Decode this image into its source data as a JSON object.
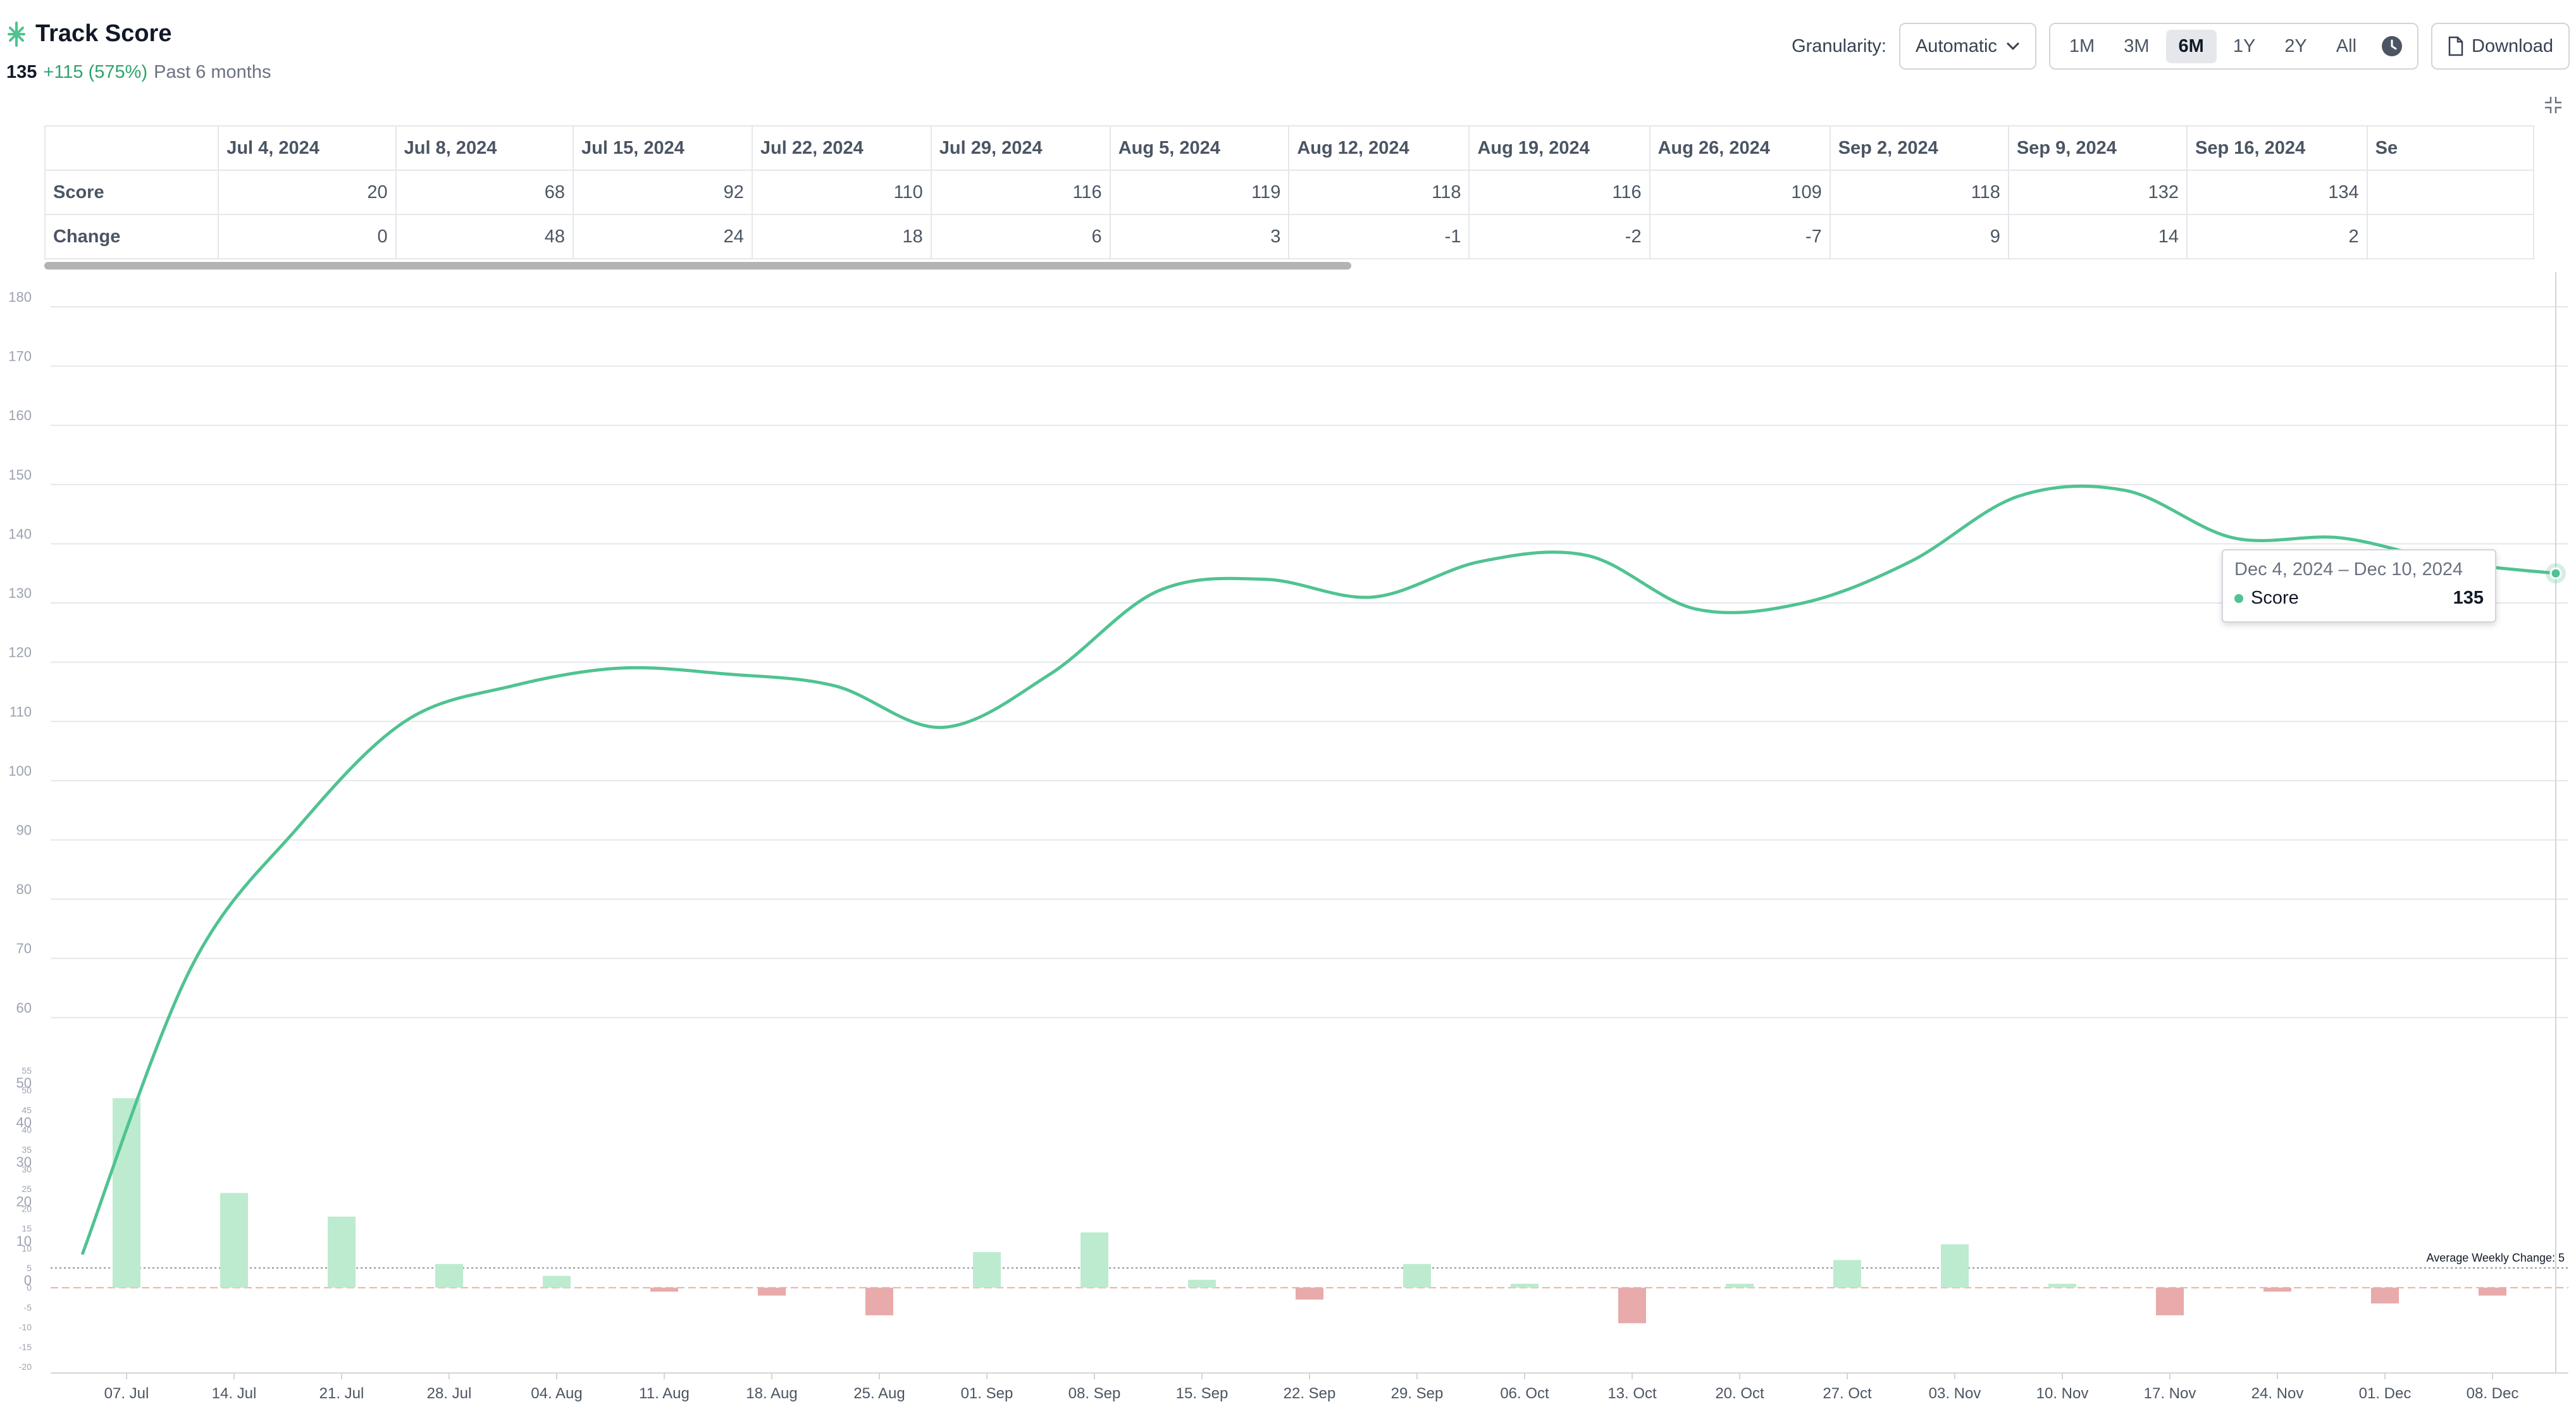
{
  "header": {
    "title": "Track Score",
    "current_value": "135",
    "change": "+115 (575%)",
    "period": "Past 6 months"
  },
  "controls": {
    "granularity_label": "Granularity:",
    "granularity_value": "Automatic",
    "ranges": [
      "1M",
      "3M",
      "6M",
      "1Y",
      "2Y",
      "All"
    ],
    "active_range": "6M",
    "download_label": "Download"
  },
  "table": {
    "columns": [
      "Jul 4, 2024",
      "Jul 8, 2024",
      "Jul 15, 2024",
      "Jul 22, 2024",
      "Jul 29, 2024",
      "Aug 5, 2024",
      "Aug 12, 2024",
      "Aug 19, 2024",
      "Aug 26, 2024",
      "Sep 2, 2024",
      "Sep 9, 2024",
      "Sep 16, 2024",
      "Se"
    ],
    "rows": [
      {
        "label": "Score",
        "values": [
          "20",
          "68",
          "92",
          "110",
          "116",
          "119",
          "118",
          "116",
          "109",
          "118",
          "132",
          "134",
          ""
        ]
      },
      {
        "label": "Change",
        "values": [
          "0",
          "48",
          "24",
          "18",
          "6",
          "3",
          "-1",
          "-2",
          "-7",
          "9",
          "14",
          "2",
          ""
        ]
      }
    ]
  },
  "tooltip": {
    "range": "Dec 4, 2024 – Dec 10, 2024",
    "series": "Score",
    "value": "135"
  },
  "colors": {
    "line": "#4fc391",
    "bar_positive": "#bdebcf",
    "bar_negative": "#e8aaaa",
    "grid": "#e5e7eb"
  },
  "chart_data": {
    "type": "line",
    "score_axis": {
      "ylim": [
        0,
        180
      ],
      "ticks": [
        60,
        70,
        80,
        90,
        100,
        110,
        120,
        130,
        140,
        150,
        160,
        170,
        180
      ]
    },
    "change_axis": {
      "ylim": [
        -20,
        55
      ],
      "ticks": [
        -20,
        -15,
        -10,
        -5,
        0,
        5,
        10,
        15,
        20,
        25,
        30,
        35,
        40,
        45,
        50,
        55
      ],
      "major_labels": [
        "0",
        "10",
        "20",
        "30",
        "40",
        "50"
      ]
    },
    "x_labels": [
      "07. Jul",
      "14. Jul",
      "21. Jul",
      "28. Jul",
      "04. Aug",
      "11. Aug",
      "18. Aug",
      "25. Aug",
      "01. Sep",
      "08. Sep",
      "15. Sep",
      "22. Sep",
      "29. Sep",
      "06. Oct",
      "13. Oct",
      "20. Oct",
      "27. Oct",
      "03. Nov",
      "10. Nov",
      "17. Nov",
      "24. Nov",
      "01. Dec",
      "08. Dec"
    ],
    "series": [
      {
        "name": "Score",
        "values": [
          20,
          68,
          92,
          110,
          116,
          119,
          118,
          116,
          109,
          118,
          132,
          134,
          131,
          137,
          138,
          129,
          130,
          137,
          148,
          149,
          141,
          141,
          137,
          135
        ]
      },
      {
        "name": "Change",
        "values": [
          48,
          24,
          18,
          6,
          3,
          -1,
          -2,
          -7,
          9,
          14,
          2,
          -3,
          6,
          1,
          -9,
          1,
          7,
          11,
          1,
          -7,
          -1,
          -4,
          -2
        ]
      }
    ],
    "annotation": "Average Weekly Change: 5",
    "average_weekly_change": 5,
    "grid": true
  }
}
